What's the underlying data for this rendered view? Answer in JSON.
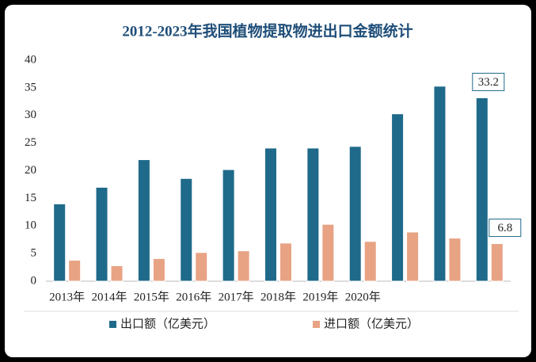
{
  "chart_data": {
    "type": "bar",
    "title": "2012-2023年我国植物提取物进出口金额统计",
    "categories": [
      "2013年",
      "2014年",
      "2015年",
      "2016年",
      "2017年",
      "2018年",
      "2019年",
      "2020年",
      null,
      null,
      null
    ],
    "series": [
      {
        "name": "出口额（亿美元）",
        "color": "#1f6a8a",
        "values": [
          14,
          17,
          22,
          18.6,
          20.2,
          24.1,
          24.1,
          24.4,
          30.3,
          35.3,
          33.2
        ],
        "value_labels": [
          null,
          null,
          null,
          null,
          null,
          null,
          null,
          null,
          null,
          null,
          "33.2"
        ]
      },
      {
        "name": "进口额（亿美元）",
        "color": "#e8a284",
        "values": [
          3.8,
          2.8,
          4.1,
          5.2,
          5.5,
          6.9,
          10.3,
          7.2,
          8.9,
          7.8,
          6.8
        ],
        "value_labels": [
          null,
          null,
          null,
          null,
          null,
          null,
          null,
          null,
          null,
          null,
          "6.8"
        ]
      }
    ],
    "ylim": [
      0,
      40
    ],
    "yticks": [
      0,
      5,
      10,
      15,
      20,
      25,
      30,
      35,
      40
    ],
    "grid": false
  }
}
